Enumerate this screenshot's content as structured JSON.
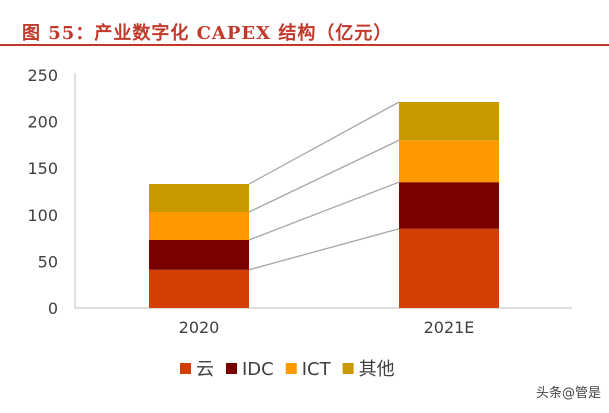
{
  "header": {
    "title": "图 55：产业数字化 CAPEX 结构（亿元）"
  },
  "watermark": "头条@管是",
  "colors": {
    "title": "#c0392b",
    "cloud": "#d23f00",
    "idc": "#7a0000",
    "ict": "#ff9900",
    "other": "#c89a00",
    "connector": "#a6a6a6"
  },
  "chart_data": {
    "type": "bar",
    "stacked": true,
    "categories": [
      "2020",
      "2021E"
    ],
    "series": [
      {
        "name": "云",
        "values": [
          41,
          85
        ],
        "color": "#d23f00"
      },
      {
        "name": "IDC",
        "values": [
          32,
          50
        ],
        "color": "#7a0000"
      },
      {
        "name": "ICT",
        "values": [
          30,
          45
        ],
        "color": "#ff9900"
      },
      {
        "name": "其他",
        "values": [
          30,
          41
        ],
        "color": "#c89a00"
      }
    ],
    "y_ticks": [
      "0",
      "50",
      "100",
      "150",
      "200",
      "250"
    ],
    "ylim": [
      0,
      250
    ],
    "grid": false,
    "legend_position": "bottom",
    "connector_lines": true
  }
}
